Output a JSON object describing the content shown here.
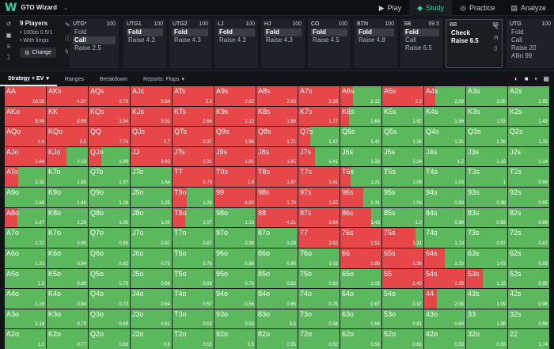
{
  "app": {
    "logo_letter": "W",
    "title": "GTO Wizard"
  },
  "nav": [
    {
      "label": "Play",
      "icon": "play-icon",
      "glyph": "▶"
    },
    {
      "label": "Study",
      "icon": "graduation-cap-icon",
      "glyph": "◆"
    },
    {
      "label": "Practice",
      "icon": "target-icon",
      "glyph": "◎"
    },
    {
      "label": "Analyze",
      "icon": "chart-icon",
      "glyph": "▤"
    }
  ],
  "game": {
    "title": "9 Players",
    "lines": [
      "• 100bb 0.5/1",
      "• With limps"
    ],
    "change_label": "Change"
  },
  "positions": [
    {
      "name": "UTG*",
      "stack": "100",
      "actions": [
        "Fold",
        "Call",
        "Raise 2.5"
      ],
      "highlight": 1
    },
    {
      "name": "UTG1",
      "stack": "100",
      "actions": [
        "Fold",
        "Raise 4.3"
      ],
      "highlight": 0
    },
    {
      "name": "UTG2",
      "stack": "100",
      "actions": [
        "Fold",
        "Raise 4.3"
      ],
      "highlight": 0
    },
    {
      "name": "LJ",
      "stack": "100",
      "actions": [
        "Fold",
        "Raise 4.3"
      ],
      "highlight": 0
    },
    {
      "name": "HJ",
      "stack": "100",
      "actions": [
        "Fold",
        "Raise 4.3"
      ],
      "highlight": 0
    },
    {
      "name": "CO",
      "stack": "100",
      "actions": [
        "Fold",
        "Raise 4.5"
      ],
      "highlight": 0
    },
    {
      "name": "BTN",
      "stack": "100",
      "actions": [
        "Fold",
        "Raise 4.8"
      ],
      "highlight": 0
    },
    {
      "name": "SB",
      "stack": "99.5",
      "actions": [
        "Fold",
        "Call",
        "Raise 6.5"
      ],
      "highlight": 0
    },
    {
      "name": "BB",
      "stack": "98",
      "actions": [
        "Check",
        "Raise 6.5"
      ],
      "highlight": -1
    },
    {
      "name": "UTG",
      "stack": "100",
      "actions": [
        "Fold",
        "Call",
        "Raise 20",
        "Allin 99"
      ],
      "highlight": -1
    }
  ],
  "toolbar": {
    "tabs": [
      "Strategy + EV",
      "Ranges",
      "Breakdown",
      "Reports: Flops"
    ]
  },
  "colors": {
    "raise": "#e8474a",
    "check": "#5cb85c"
  },
  "grid": [
    [
      [
        "AA",
        100,
        "10.58"
      ],
      [
        "AKs",
        100,
        "4.07"
      ],
      [
        "AQs",
        100,
        "3.79"
      ],
      [
        "AJs",
        100,
        "3.64"
      ],
      [
        "ATs",
        100,
        "3.3"
      ],
      [
        "A9s",
        100,
        "2.62"
      ],
      [
        "A8s",
        100,
        "2.43"
      ],
      [
        "A7s",
        100,
        "2.26"
      ],
      [
        "A6s",
        30,
        "2.12"
      ],
      [
        "A5s",
        100,
        "2.2"
      ],
      [
        "A4s",
        27,
        "2.09"
      ],
      [
        "A3s",
        0,
        "2.06"
      ],
      [
        "A2s",
        0,
        "1.95"
      ]
    ],
    [
      [
        "AKo",
        100,
        "8.99"
      ],
      [
        "KK",
        100,
        "8.99"
      ],
      [
        "KQs",
        100,
        "3.34"
      ],
      [
        "KJs",
        100,
        "3.02"
      ],
      [
        "KTs",
        100,
        "2.64"
      ],
      [
        "K9s",
        100,
        "2.13"
      ],
      [
        "K8s",
        100,
        "1.89"
      ],
      [
        "K7s",
        100,
        "1.77"
      ],
      [
        "K6s",
        22,
        "1.69"
      ],
      [
        "K5s",
        0,
        "1.62"
      ],
      [
        "K4s",
        0,
        "1.56"
      ],
      [
        "K3s",
        0,
        "1.53"
      ],
      [
        "K2s",
        0,
        "1.49"
      ]
    ],
    [
      [
        "AQo",
        100,
        "2.8"
      ],
      [
        "KQo",
        100,
        "2.5"
      ],
      [
        "QQ",
        100,
        "7.76"
      ],
      [
        "QJs",
        100,
        "2.7"
      ],
      [
        "QTs",
        100,
        "2.37"
      ],
      [
        "Q9s",
        100,
        "1.96"
      ],
      [
        "Q8s",
        100,
        "1.71"
      ],
      [
        "Q7s",
        28,
        "1.47"
      ],
      [
        "Q6s",
        0,
        "1.41"
      ],
      [
        "Q5s",
        0,
        "1.36"
      ],
      [
        "Q4s",
        0,
        "1.32"
      ],
      [
        "Q3s",
        0,
        "1.28"
      ],
      [
        "Q2s",
        0,
        "1.25"
      ]
    ],
    [
      [
        "AJo",
        100,
        "2.64"
      ],
      [
        "KJo",
        48,
        "2.19"
      ],
      [
        "QJo",
        30,
        "1.99"
      ],
      [
        "JJ",
        100,
        "6.83"
      ],
      [
        "JTs",
        100,
        "2.31"
      ],
      [
        "J9s",
        100,
        "1.91"
      ],
      [
        "J8s",
        100,
        "1.65"
      ],
      [
        "J7s",
        40,
        "1.41"
      ],
      [
        "J6s",
        0,
        "1.28"
      ],
      [
        "J5s",
        0,
        "1.24"
      ],
      [
        "J4s",
        0,
        "1.2"
      ],
      [
        "J3s",
        0,
        "1.16"
      ],
      [
        "J2s",
        0,
        "1.14"
      ]
    ],
    [
      [
        "ATo",
        32,
        "2.32"
      ],
      [
        "KTo",
        0,
        "1.85"
      ],
      [
        "QTo",
        0,
        "1.67"
      ],
      [
        "JTo",
        0,
        "1.64"
      ],
      [
        "TT",
        100,
        "5.79"
      ],
      [
        "T9s",
        100,
        "1.9"
      ],
      [
        "T8s",
        100,
        "1.67"
      ],
      [
        "T7s",
        100,
        "1.41"
      ],
      [
        "T6s",
        25,
        "1.21"
      ],
      [
        "T5s",
        0,
        "1.08"
      ],
      [
        "T4s",
        0,
        "1.03"
      ],
      [
        "T3s",
        0,
        "1"
      ],
      [
        "T2s",
        0,
        "0.96"
      ]
    ],
    [
      [
        "A9o",
        0,
        "1.66"
      ],
      [
        "K9o",
        0,
        "1.46"
      ],
      [
        "Q9o",
        0,
        "1.28"
      ],
      [
        "J9o",
        0,
        "1.25"
      ],
      [
        "T9o",
        35,
        "1.26"
      ],
      [
        "99",
        100,
        "4.82"
      ],
      [
        "98s",
        100,
        "1.78"
      ],
      [
        "97s",
        100,
        "1.55"
      ],
      [
        "96s",
        55,
        "1.31"
      ],
      [
        "95s",
        0,
        "1.06"
      ],
      [
        "94s",
        0,
        "0.93"
      ],
      [
        "93s",
        0,
        "0.98"
      ],
      [
        "92s",
        0,
        "0.95"
      ]
    ],
    [
      [
        "A8o",
        30,
        "1.47"
      ],
      [
        "K8o",
        0,
        "1.26"
      ],
      [
        "Q8o",
        0,
        "1.05"
      ],
      [
        "J8o",
        0,
        "1.05"
      ],
      [
        "T8o",
        30,
        "1.07"
      ],
      [
        "98o",
        0,
        "1.13"
      ],
      [
        "88",
        100,
        "4.21"
      ],
      [
        "87s",
        100,
        "1.64"
      ],
      [
        "86s",
        75,
        "1.43"
      ],
      [
        "85s",
        0,
        "1.2"
      ],
      [
        "84s",
        0,
        "0.96"
      ],
      [
        "83s",
        0,
        "0.83"
      ],
      [
        "82s",
        0,
        "0.89"
      ]
    ],
    [
      [
        "A7o",
        0,
        "1.22"
      ],
      [
        "K7o",
        0,
        "0.95"
      ],
      [
        "Q7o",
        0,
        "0.86"
      ],
      [
        "J7o",
        0,
        "0.87"
      ],
      [
        "T7o",
        0,
        "0.87"
      ],
      [
        "97o",
        0,
        "0.99"
      ],
      [
        "87o",
        0,
        "1.09"
      ],
      [
        "77",
        100,
        "3.52"
      ],
      [
        "76s",
        100,
        "1.52"
      ],
      [
        "75s",
        80,
        "1.31"
      ],
      [
        "74s",
        0,
        "1.13"
      ],
      [
        "73s",
        0,
        "0.97"
      ],
      [
        "72s",
        0,
        "0.87"
      ]
    ],
    [
      [
        "A6o",
        0,
        "1.21"
      ],
      [
        "K6o",
        0,
        "0.94"
      ],
      [
        "Q6o",
        0,
        "0.82"
      ],
      [
        "J6o",
        0,
        "0.75"
      ],
      [
        "T6o",
        0,
        "0.76"
      ],
      [
        "96o",
        0,
        "0.86"
      ],
      [
        "86o",
        0,
        "0.95"
      ],
      [
        "76o",
        0,
        "1.02"
      ],
      [
        "66",
        100,
        "2.89"
      ],
      [
        "65s",
        100,
        "1.39"
      ],
      [
        "64s",
        50,
        "1.23"
      ],
      [
        "63s",
        0,
        "1.03"
      ],
      [
        "62s",
        0,
        "0.89"
      ]
    ],
    [
      [
        "A5o",
        0,
        "1.3"
      ],
      [
        "K5o",
        0,
        "0.89"
      ],
      [
        "Q5o",
        0,
        "0.75"
      ],
      [
        "J5o",
        0,
        "0.66"
      ],
      [
        "T5o",
        0,
        "0.66"
      ],
      [
        "95o",
        0,
        "0.76"
      ],
      [
        "85o",
        0,
        "0.82"
      ],
      [
        "75o",
        0,
        "0.92"
      ],
      [
        "65o",
        0,
        "1.02"
      ],
      [
        "55",
        100,
        "2.45"
      ],
      [
        "54s",
        100,
        "1.29"
      ],
      [
        "53s",
        40,
        "1.15"
      ],
      [
        "52s",
        0,
        "0.95"
      ]
    ],
    [
      [
        "A4o",
        0,
        "1.19"
      ],
      [
        "K4o",
        0,
        "0.84"
      ],
      [
        "Q4o",
        0,
        "0.72"
      ],
      [
        "J4o",
        0,
        "0.64"
      ],
      [
        "T4o",
        0,
        "0.57"
      ],
      [
        "94o",
        0,
        "0.56"
      ],
      [
        "84o",
        0,
        "0.65"
      ],
      [
        "74o",
        0,
        "0.75"
      ],
      [
        "64o",
        0,
        "0.87"
      ],
      [
        "54o",
        0,
        "0.97"
      ],
      [
        "44",
        30,
        "2.08"
      ],
      [
        "43s",
        0,
        "1.09"
      ],
      [
        "42s",
        0,
        "0.96"
      ]
    ],
    [
      [
        "A3o",
        0,
        "1.14"
      ],
      [
        "K3o",
        0,
        "0.79"
      ],
      [
        "Q3o",
        0,
        "0.69"
      ],
      [
        "J3o",
        0,
        "0.61"
      ],
      [
        "T3o",
        0,
        "0.53"
      ],
      [
        "93o",
        0,
        "0.53"
      ],
      [
        "83o",
        0,
        "0.5"
      ],
      [
        "73o",
        0,
        "0.58"
      ],
      [
        "63o",
        0,
        "0.68"
      ],
      [
        "53o",
        0,
        "0.81"
      ],
      [
        "43o",
        0,
        "0.69"
      ],
      [
        "33",
        0,
        "1.88"
      ],
      [
        "32s",
        0,
        "0.88"
      ]
    ],
    [
      [
        "A2o",
        0,
        "1.2"
      ],
      [
        "K2o",
        0,
        "0.77"
      ],
      [
        "Q2o",
        0,
        "0.68"
      ],
      [
        "J2o",
        0,
        "0.6"
      ],
      [
        "T2o",
        0,
        "0.53"
      ],
      [
        "92o",
        0,
        "0.5"
      ],
      [
        "82o",
        0,
        "0.55"
      ],
      [
        "72o",
        0,
        "0.52"
      ],
      [
        "62o",
        0,
        "0.55"
      ],
      [
        "52o",
        0,
        "0.63"
      ],
      [
        "42o",
        0,
        "0.53"
      ],
      [
        "32o",
        0,
        "0.55"
      ],
      [
        "22",
        0,
        "1.74"
      ]
    ]
  ]
}
